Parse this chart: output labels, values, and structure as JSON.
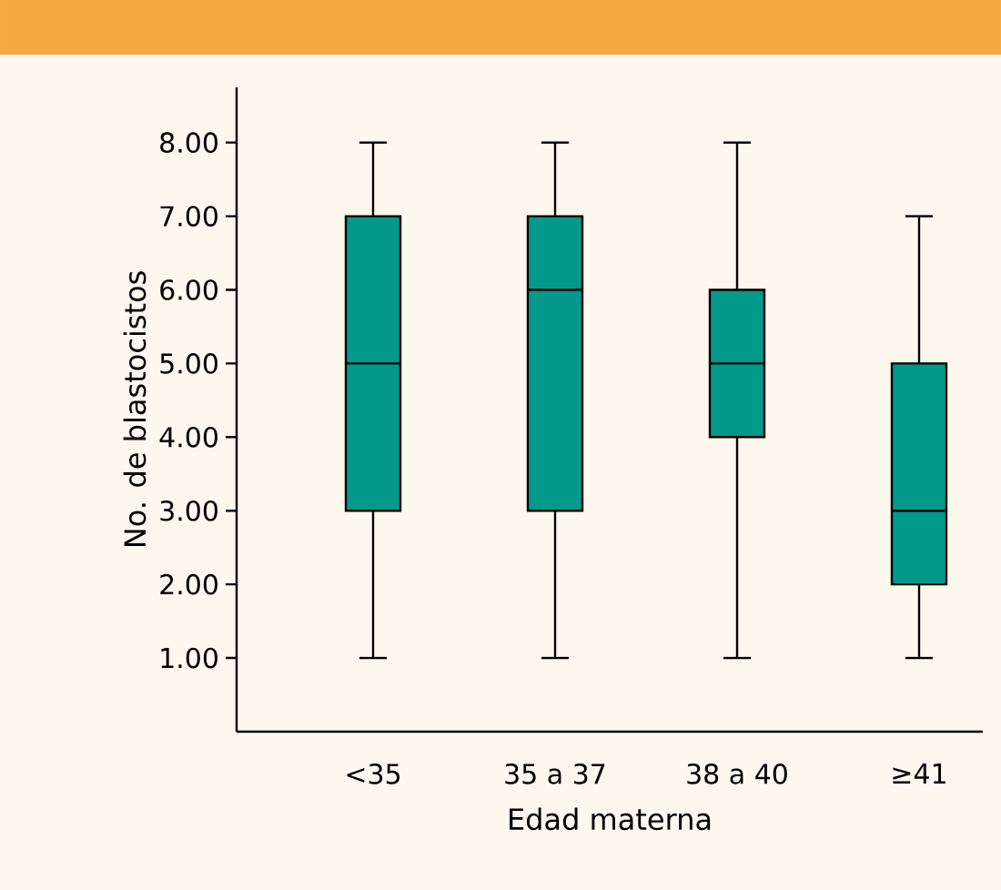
{
  "chart_data": {
    "type": "box",
    "xlabel": "Edad materna",
    "ylabel": "No. de blastocistos",
    "categories": [
      "<35",
      "35 a 37",
      "38 a 40",
      "≥41"
    ],
    "color": "#00998a",
    "boxes": [
      {
        "low": 1,
        "q1": 3,
        "median": 5,
        "q3": 7,
        "high": 8
      },
      {
        "low": 1,
        "q1": 3,
        "median": 6,
        "q3": 7,
        "high": 8
      },
      {
        "low": 1,
        "q1": 4,
        "median": 5,
        "q3": 6,
        "high": 8
      },
      {
        "low": 1,
        "q1": 2,
        "median": 3,
        "q3": 5,
        "high": 7
      }
    ],
    "ylim": [
      0,
      8.75
    ],
    "yticks": [
      {
        "value": 1,
        "label": "1.00"
      },
      {
        "value": 2,
        "label": "2.00"
      },
      {
        "value": 3,
        "label": "3.00"
      },
      {
        "value": 4,
        "label": "4.00"
      },
      {
        "value": 5,
        "label": "5.00"
      },
      {
        "value": 6,
        "label": "6.00"
      },
      {
        "value": 7,
        "label": "7.00"
      },
      {
        "value": 8,
        "label": "8.00"
      }
    ]
  }
}
